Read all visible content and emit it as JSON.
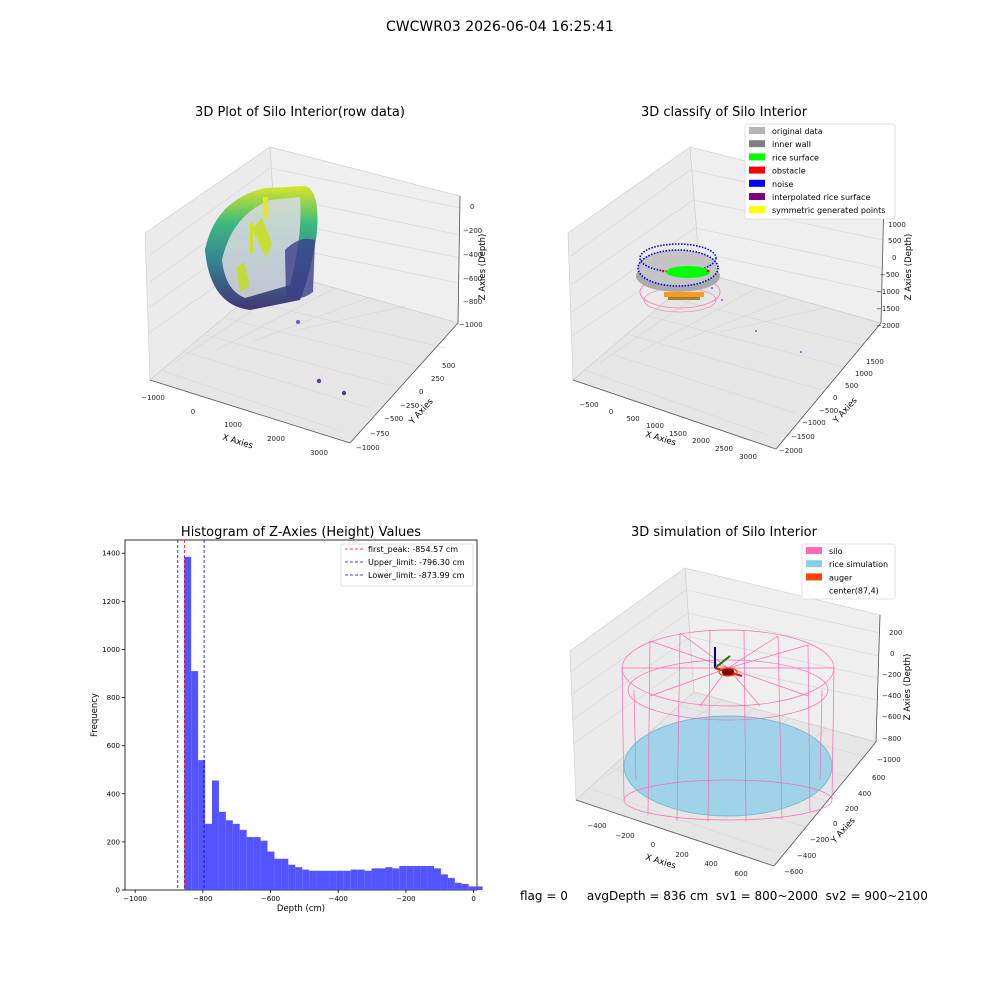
{
  "figure": {
    "suptitle": "CWCWR03 2026-06-04 16:25:41",
    "footer": "flag = 0     avgDepth = 836 cm  sv1 = 800~2000  sv2 = 900~2100"
  },
  "colors": {
    "viridis_low": "#3b2a6e",
    "viridis_mid": "#2fa58a",
    "viridis_high": "#d9e51f",
    "original": "#b4b4b4",
    "inner_wall": "#808080",
    "rice_surface": "#00ff00",
    "obstacle": "#ff0000",
    "noise": "#0000ff",
    "interpolated": "#800080",
    "symmetric": "#ffff00",
    "silo": "#ff69b4",
    "rice_sim": "#87ceeb",
    "auger": "#ff4500",
    "hist_bar": "#4b4bff"
  },
  "chart_data": [
    {
      "type": "scatter",
      "title": "3D Plot of Silo Interior(row data)",
      "xlabel": "X Axies",
      "ylabel": "Y Axies",
      "zlabel": "Z Axies (Depth)",
      "x_ticks": [
        "−1000",
        "0",
        "1000",
        "2000",
        "3000"
      ],
      "y_ticks": [
        "500",
        "250",
        "0",
        "−250",
        "−500",
        "−750",
        "−1000"
      ],
      "z_ticks": [
        "0",
        "−200",
        "−400",
        "−600",
        "−800",
        "−1000"
      ],
      "colormap": "viridis"
    },
    {
      "type": "scatter",
      "title": "3D classify of Silo Interior",
      "xlabel": "X Axies",
      "ylabel": "Y Axies",
      "zlabel": "Z Axies (Depth)",
      "x_ticks": [
        "−500",
        "0",
        "500",
        "1000",
        "1500",
        "2000",
        "2500",
        "3000"
      ],
      "y_ticks": [
        "1500",
        "1000",
        "500",
        "0",
        "−500",
        "−1000",
        "−1500",
        "−2000"
      ],
      "z_ticks": [
        "1000",
        "500",
        "0",
        "−500",
        "−1000",
        "−1500",
        "−2000"
      ],
      "legend": [
        {
          "label": "original data",
          "color": "#b4b4b4"
        },
        {
          "label": "inner wall",
          "color": "#808080"
        },
        {
          "label": "rice surface",
          "color": "#00ff00"
        },
        {
          "label": "obstacle",
          "color": "#ff0000"
        },
        {
          "label": "noise",
          "color": "#0000ff"
        },
        {
          "label": "interpolated rice surface",
          "color": "#800080"
        },
        {
          "label": "symmetric generated points",
          "color": "#ffff00"
        }
      ]
    },
    {
      "type": "bar",
      "title": "Histogram of Z-Axies (Height) Values",
      "xlabel": "Depth (cm)",
      "ylabel": "Frequency",
      "xlim": [
        -1030,
        10
      ],
      "ylim": [
        0,
        1455
      ],
      "x_ticks": [
        -1000,
        -800,
        -600,
        -400,
        -200,
        0
      ],
      "x_tick_labels": [
        "−1000",
        "−800",
        "−600",
        "−400",
        "−200",
        "0"
      ],
      "y_ticks": [
        0,
        200,
        400,
        600,
        800,
        1000,
        1200,
        1400
      ],
      "y_tick_labels": [
        "0",
        "200",
        "400",
        "600",
        "800",
        "1000",
        "1200",
        "1400"
      ],
      "bin_start": -855,
      "bin_width": 20.5,
      "values": [
        1385,
        910,
        540,
        275,
        455,
        325,
        290,
        275,
        250,
        220,
        220,
        205,
        160,
        130,
        130,
        105,
        95,
        85,
        80,
        80,
        80,
        80,
        80,
        80,
        85,
        85,
        80,
        90,
        90,
        95,
        90,
        100,
        100,
        100,
        100,
        100,
        90,
        65,
        50,
        30,
        25,
        15,
        15
      ],
      "vlines": [
        {
          "label": "first_peak: -854.57 cm",
          "x": -854.57,
          "color": "#ff0000"
        },
        {
          "label": "Upper_limit: -796.30 cm",
          "x": -796.3,
          "color": "#0000ff"
        },
        {
          "label": "Lower_limit: -873.99 cm",
          "x": -873.99,
          "color": "#0000ff"
        }
      ]
    },
    {
      "type": "scatter",
      "title": "3D simulation of Silo Interior",
      "xlabel": "X Axies",
      "ylabel": "Y Axies",
      "zlabel": "Z Axies (Depth)",
      "x_ticks": [
        "−400",
        "−200",
        "0",
        "200",
        "400",
        "600"
      ],
      "y_ticks": [
        "600",
        "400",
        "200",
        "0",
        "−200",
        "−400",
        "−600"
      ],
      "z_ticks": [
        "200",
        "0",
        "−200",
        "−400",
        "−600",
        "−800",
        "−1000"
      ],
      "legend": [
        {
          "label": "silo",
          "color": "#ff69b4"
        },
        {
          "label": "rice simulation",
          "color": "#87ceeb"
        },
        {
          "label": "auger",
          "color": "#ff4500"
        },
        {
          "label": "center(87,4)",
          "color": ""
        }
      ]
    }
  ]
}
